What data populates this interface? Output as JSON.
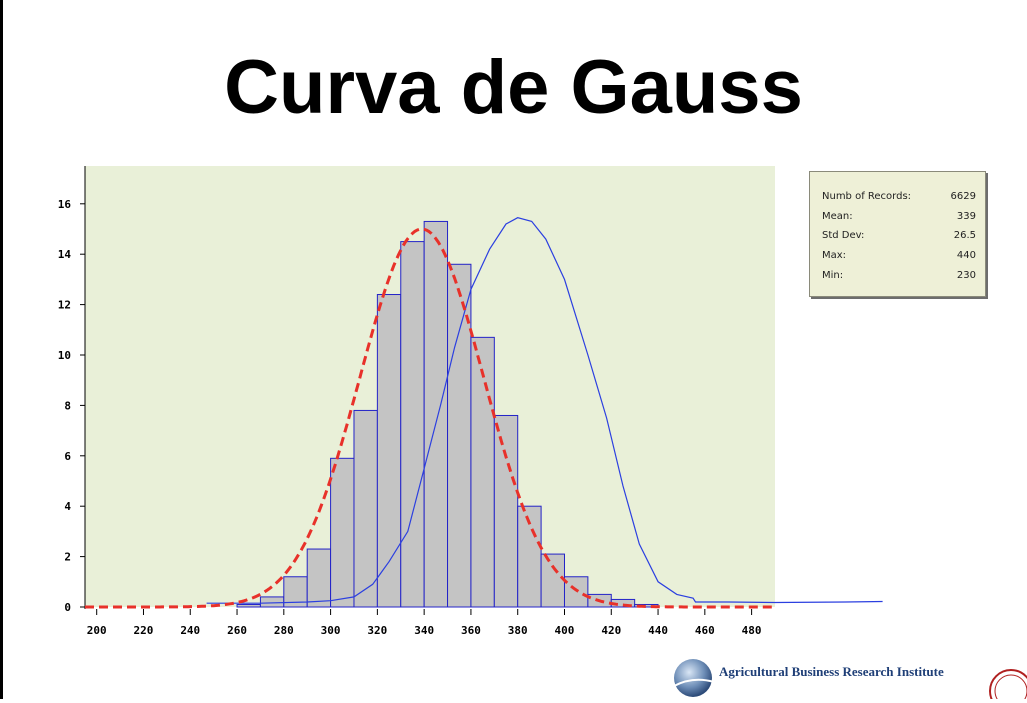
{
  "title": "Curva de Gauss",
  "stats": {
    "rows": [
      {
        "label": "Numb of Records:",
        "value": "6629"
      },
      {
        "label": "Mean:",
        "value": "339"
      },
      {
        "label": "Std Dev:",
        "value": "26.5"
      },
      {
        "label": "Max:",
        "value": "440"
      },
      {
        "label": "Min:",
        "value": "230"
      }
    ]
  },
  "footer": {
    "text": "Agricultural Business Research Institute"
  },
  "colors": {
    "plot_background": "#e9f0d8",
    "bar_fill": "#c4c4c4",
    "bar_stroke": "#2323c8",
    "normal_curve": "#e8312a",
    "second_curve": "#2b3fe0",
    "logo_blue": "#1f3f77"
  },
  "chart_data": {
    "type": "bar",
    "xlim": [
      195,
      490
    ],
    "ylim": [
      0,
      17.5
    ],
    "xticks": [
      "200",
      "220",
      "240",
      "260",
      "280",
      "300",
      "320",
      "340",
      "360",
      "380",
      "400",
      "420",
      "440",
      "460",
      "480"
    ],
    "yticks": [
      "0",
      "2",
      "4",
      "6",
      "8",
      "10",
      "12",
      "14",
      "16"
    ],
    "bin_width": 10,
    "bins": [
      {
        "x": 265,
        "value": 0.1
      },
      {
        "x": 275,
        "value": 0.4
      },
      {
        "x": 285,
        "value": 1.2
      },
      {
        "x": 295,
        "value": 2.3
      },
      {
        "x": 305,
        "value": 5.9
      },
      {
        "x": 315,
        "value": 7.8
      },
      {
        "x": 325,
        "value": 12.4
      },
      {
        "x": 335,
        "value": 14.5
      },
      {
        "x": 345,
        "value": 15.3
      },
      {
        "x": 355,
        "value": 13.6
      },
      {
        "x": 365,
        "value": 10.7
      },
      {
        "x": 375,
        "value": 7.6
      },
      {
        "x": 385,
        "value": 4.0
      },
      {
        "x": 395,
        "value": 2.1
      },
      {
        "x": 405,
        "value": 1.2
      },
      {
        "x": 415,
        "value": 0.5
      },
      {
        "x": 425,
        "value": 0.3
      },
      {
        "x": 435,
        "value": 0.1
      }
    ],
    "normal_curve": {
      "mean": 339,
      "std": 26.5,
      "peak": 15.0,
      "x_range": [
        195,
        490
      ]
    },
    "second_curve": {
      "points": [
        [
          247,
          0.15
        ],
        [
          270,
          0.15
        ],
        [
          290,
          0.2
        ],
        [
          300,
          0.25
        ],
        [
          310,
          0.4
        ],
        [
          318,
          0.9
        ],
        [
          325,
          1.8
        ],
        [
          333,
          3.0
        ],
        [
          340,
          5.5
        ],
        [
          347,
          8.0
        ],
        [
          353,
          10.3
        ],
        [
          360,
          12.6
        ],
        [
          368,
          14.2
        ],
        [
          375,
          15.2
        ],
        [
          380,
          15.45
        ],
        [
          386,
          15.3
        ],
        [
          392,
          14.6
        ],
        [
          400,
          13.0
        ],
        [
          410,
          10.0
        ],
        [
          418,
          7.5
        ],
        [
          425,
          4.8
        ],
        [
          432,
          2.5
        ],
        [
          440,
          1.0
        ],
        [
          448,
          0.5
        ],
        [
          455,
          0.35
        ],
        [
          456,
          0.2
        ],
        [
          470,
          0.2
        ],
        [
          490,
          0.18
        ],
        [
          520,
          0.2
        ],
        [
          536,
          0.22
        ]
      ]
    }
  }
}
